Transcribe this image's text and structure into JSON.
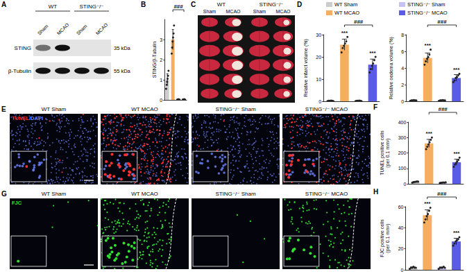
{
  "panel_letters": [
    "A",
    "B",
    "C",
    "D",
    "E",
    "F",
    "G",
    "H"
  ],
  "shared_legend": [
    {
      "name": "WT Sham",
      "color": "#cccccc"
    },
    {
      "name": "WT MCAO",
      "color": "#f5ad60"
    },
    {
      "name": "STING⁻/⁻ Sham",
      "color": "#c6c2f2"
    },
    {
      "name": "STING⁻/⁻ MCAO",
      "color": "#5a5ce6"
    }
  ],
  "blot": {
    "groups": [
      "WT",
      "STING⁻/⁻"
    ],
    "lanes": [
      "Sham",
      "MCAO",
      "Sham",
      "MCAO"
    ],
    "rows": [
      {
        "label": "STING",
        "size": "35 kDa",
        "band_intensity": [
          0.55,
          1,
          0,
          0
        ]
      },
      {
        "label": "β-Tubulin",
        "size": "55 kDa",
        "band_intensity": [
          1,
          1,
          1,
          1
        ]
      }
    ]
  },
  "ttc": {
    "groups": [
      "WT",
      "STING⁻/⁻"
    ],
    "lanes": [
      "Sham",
      "MCAO",
      "Sham",
      "MCAO"
    ]
  },
  "micrographs": [
    {
      "stain": "TUNEL/DAPI",
      "stain_colors": [
        "#ff3030",
        "#6f86ff"
      ],
      "panels": [
        "WT Sham",
        "WT MCAO",
        "STING⁻/⁻ Sham",
        "STING⁻/⁻ MCAO"
      ]
    },
    {
      "stain": "FJC",
      "stain_colors": [
        "#33e033"
      ],
      "panels": [
        "WT Sham",
        "WT MCAO",
        "STING⁻/⁻ Sham",
        "STING⁻/⁻ MCAO"
      ]
    }
  ],
  "chart_data": [
    {
      "type": "bar",
      "categories": [
        null,
        null,
        null,
        null
      ],
      "values": [
        1.0,
        3.0,
        0.02,
        0.02
      ],
      "errors": [
        0.3,
        0.5,
        0.01,
        0.01
      ],
      "points": [
        [
          0.55,
          0.75,
          0.9,
          1.05,
          1.2,
          1.45
        ],
        [
          2.3,
          2.6,
          2.9,
          3.1,
          3.3,
          3.7
        ],
        [
          0.01,
          0.02,
          0.02,
          0.03,
          0.02,
          0.01
        ],
        [
          0.01,
          0.02,
          0.02,
          0.03,
          0.02,
          0.01
        ]
      ],
      "colors": [
        "#cccccc",
        "#f5ad60",
        "#c6c2f2",
        "#5a5ce6"
      ],
      "ylabel": "STING/β-Tubulin",
      "ylim": [
        0,
        4
      ],
      "yticks": [
        0,
        1,
        2,
        3
      ],
      "tick_labels": "y",
      "grid": false,
      "annotations": [
        {
          "text": "###",
          "from": 1,
          "to": 3
        }
      ]
    },
    {
      "type": "bar",
      "categories": [
        null,
        null,
        null,
        null
      ],
      "values": [
        0.2,
        25.5,
        0.2,
        16.5
      ],
      "errors": [
        0.1,
        2.5,
        0.1,
        2.5
      ],
      "points": [
        [
          0.1,
          0.2,
          0.2,
          0.3,
          0.2,
          0.1
        ],
        [
          22,
          24,
          25,
          26,
          27,
          29
        ],
        [
          0.1,
          0.2,
          0.2,
          0.3,
          0.2,
          0.1
        ],
        [
          13,
          14.5,
          16,
          17,
          18.5,
          20
        ]
      ],
      "colors": [
        "#cccccc",
        "#f5ad60",
        "#c6c2f2",
        "#5a5ce6"
      ],
      "ylabel": "Relative infarct volume (%)",
      "ylim": [
        0,
        30
      ],
      "yticks": [
        0,
        10,
        20,
        30
      ],
      "tick_labels": "y",
      "grid": false,
      "annotations": [
        {
          "text": "***",
          "at": 1
        },
        {
          "text": "***",
          "at": 3
        },
        {
          "text": "###",
          "from": 1,
          "to": 3
        }
      ]
    },
    {
      "type": "bar",
      "categories": [
        null,
        null,
        null,
        null
      ],
      "values": [
        0.1,
        5.2,
        0.1,
        2.8
      ],
      "errors": [
        0.05,
        0.6,
        0.05,
        0.4
      ],
      "points": [
        [
          0.05,
          0.1,
          0.1,
          0.15,
          0.1,
          0.1
        ],
        [
          4.4,
          4.8,
          5.1,
          5.3,
          5.6,
          6.2
        ],
        [
          0.05,
          0.1,
          0.1,
          0.15,
          0.1,
          0.1
        ],
        [
          2.3,
          2.5,
          2.8,
          2.9,
          3.1,
          3.3
        ]
      ],
      "colors": [
        "#cccccc",
        "#f5ad60",
        "#c6c2f2",
        "#5a5ce6"
      ],
      "ylabel": "Relative oedema volume (%)",
      "ylim": [
        0,
        8
      ],
      "yticks": [
        0,
        2,
        4,
        6,
        8
      ],
      "tick_labels": "y",
      "grid": false,
      "annotations": [
        {
          "text": "***",
          "at": 1
        },
        {
          "text": "***",
          "at": 3
        },
        {
          "text": "###",
          "from": 1,
          "to": 3
        }
      ]
    },
    {
      "type": "bar",
      "categories": [
        null,
        null,
        null,
        null
      ],
      "values": [
        12,
        262,
        8,
        140
      ],
      "errors": [
        3,
        26,
        2,
        20
      ],
      "points": [
        [
          8,
          10,
          12,
          13,
          15,
          14
        ],
        [
          225,
          240,
          255,
          270,
          285,
          300
        ],
        [
          5,
          7,
          8,
          9,
          8,
          10
        ],
        [
          110,
          125,
          135,
          145,
          155,
          170
        ]
      ],
      "colors": [
        "#cccccc",
        "#f5ad60",
        "#c6c2f2",
        "#5a5ce6"
      ],
      "ylabel": "TUNEL positive cells\n(per 0.1 mm²)",
      "ylim": [
        0,
        400
      ],
      "yticks": [
        0,
        100,
        200,
        300,
        400
      ],
      "tick_labels": "y",
      "grid": false,
      "annotations": [
        {
          "text": "***",
          "at": 1
        },
        {
          "text": "***",
          "at": 3
        },
        {
          "text": "###",
          "from": 1,
          "to": 3
        }
      ]
    },
    {
      "type": "bar",
      "categories": [
        null,
        null,
        null,
        null
      ],
      "values": [
        2,
        52,
        2,
        27
      ],
      "errors": [
        0.8,
        5,
        0.7,
        3
      ],
      "points": [
        [
          1,
          2,
          2,
          3,
          2,
          2
        ],
        [
          45,
          48,
          51,
          53,
          56,
          59
        ],
        [
          1,
          2,
          2,
          2,
          3,
          2
        ],
        [
          23,
          25,
          27,
          28,
          29,
          31
        ]
      ],
      "colors": [
        "#cccccc",
        "#f5ad60",
        "#c6c2f2",
        "#5a5ce6"
      ],
      "ylabel": "FJC positive cells\n(per 0.1 mm²)",
      "ylim": [
        0,
        60
      ],
      "yticks": [
        0,
        20,
        40,
        60
      ],
      "tick_labels": "y",
      "grid": false,
      "annotations": [
        {
          "text": "***",
          "at": 1
        },
        {
          "text": "***",
          "at": 3
        },
        {
          "text": "###",
          "from": 1,
          "to": 3
        }
      ]
    }
  ]
}
